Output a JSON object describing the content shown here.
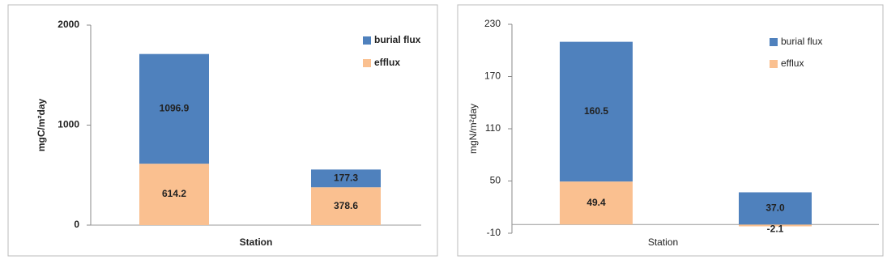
{
  "chart_data": [
    {
      "type": "bar",
      "stacked": true,
      "categories": [
        null,
        null
      ],
      "ylabel": "mgC/m²day",
      "xlabel": "Station",
      "ylim": [
        0,
        2000
      ],
      "yticks": [
        0,
        1000,
        2000
      ],
      "grid": false,
      "legend": "top-right",
      "series": [
        {
          "name": "efflux",
          "color": "#fac090",
          "values": [
            614.2,
            378.6
          ]
        },
        {
          "name": "burial flux",
          "color": "#4f81bd",
          "values": [
            1096.9,
            177.3
          ]
        }
      ]
    },
    {
      "type": "bar",
      "stacked": true,
      "categories": [
        null,
        null
      ],
      "ylabel": "mgN/m²day",
      "xlabel": "Station",
      "ylim": [
        -10,
        230
      ],
      "yticks": [
        -10,
        50,
        110,
        170,
        230
      ],
      "grid": false,
      "legend": "top-right",
      "series": [
        {
          "name": "efflux",
          "color": "#fac090",
          "values": [
            49.4,
            -2.1
          ]
        },
        {
          "name": "burial flux",
          "color": "#4f81bd",
          "values": [
            160.5,
            37.0
          ],
          "value_labels": [
            "160.5",
            "37.0"
          ]
        }
      ]
    }
  ]
}
